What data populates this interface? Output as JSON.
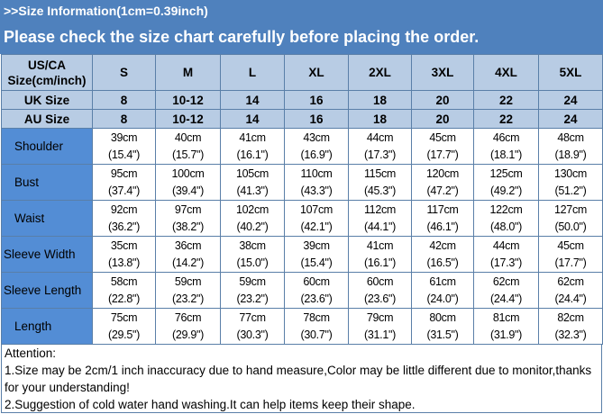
{
  "banner": {
    "title": ">>Size Information(1cm=0.39inch)",
    "subtitle": "Please check the size chart carefully before placing the order."
  },
  "colors": {
    "banner": "#4f81bd",
    "header_cells": "#b8cce4",
    "label_cells": "#538dd5",
    "border": "#5a7fa8"
  },
  "table": {
    "header_label": [
      "US/CA",
      "Size(cm/inch)"
    ],
    "sizes": [
      "S",
      "M",
      "L",
      "XL",
      "2XL",
      "3XL",
      "4XL",
      "5XL"
    ],
    "size_rows": [
      {
        "label": "UK Size",
        "values": [
          "8",
          "10-12",
          "14",
          "16",
          "18",
          "20",
          "22",
          "24"
        ]
      },
      {
        "label": "AU Size",
        "values": [
          "8",
          "10-12",
          "14",
          "16",
          "18",
          "20",
          "22",
          "24"
        ]
      }
    ],
    "measurements": [
      {
        "label": "Shoulder",
        "cm": [
          "39cm",
          "40cm",
          "41cm",
          "43cm",
          "44cm",
          "45cm",
          "46cm",
          "48cm"
        ],
        "inch": [
          "(15.4\")",
          "(15.7\")",
          "(16.1\")",
          "(16.9\")",
          "(17.3\")",
          "(17.7\")",
          "(18.1\")",
          "(18.9\")"
        ]
      },
      {
        "label": "Bust",
        "cm": [
          "95cm",
          "100cm",
          "105cm",
          "110cm",
          "115cm",
          "120cm",
          "125cm",
          "130cm"
        ],
        "inch": [
          "(37.4\")",
          "(39.4\")",
          "(41.3\")",
          "(43.3\")",
          "(45.3\")",
          "(47.2\")",
          "(49.2\")",
          "(51.2\")"
        ]
      },
      {
        "label": "Waist",
        "cm": [
          "92cm",
          "97cm",
          "102cm",
          "107cm",
          "112cm",
          "117cm",
          "122cm",
          "127cm"
        ],
        "inch": [
          "(36.2\")",
          "(38.2\")",
          "(40.2\")",
          "(42.1\")",
          "(44.1\")",
          "(46.1\")",
          "(48.0\")",
          "(50.0\")"
        ]
      },
      {
        "label": "Sleeve Width",
        "cm": [
          "35cm",
          "36cm",
          "38cm",
          "39cm",
          "41cm",
          "42cm",
          "44cm",
          "45cm"
        ],
        "inch": [
          "(13.8\")",
          "(14.2\")",
          "(15.0\")",
          "(15.4\")",
          "(16.1\")",
          "(16.5\")",
          "(17.3\")",
          "(17.7\")"
        ]
      },
      {
        "label": "Sleeve Length",
        "cm": [
          "58cm",
          "59cm",
          "59cm",
          "60cm",
          "60cm",
          "61cm",
          "62cm",
          "62cm"
        ],
        "inch": [
          "(22.8\")",
          "(23.2\")",
          "(23.2\")",
          "(23.6\")",
          "(23.6\")",
          "(24.0\")",
          "(24.4\")",
          "(24.4\")"
        ]
      },
      {
        "label": "Length",
        "cm": [
          "75cm",
          "76cm",
          "77cm",
          "78cm",
          "79cm",
          "80cm",
          "81cm",
          "82cm"
        ],
        "inch": [
          "(29.5\")",
          "(29.9\")",
          "(30.3\")",
          "(30.7\")",
          "(31.1\")",
          "(31.5\")",
          "(31.9\")",
          "(32.3\")"
        ]
      }
    ]
  },
  "attention": {
    "heading": "Attention:",
    "notes": [
      "1.Size may be 2cm/1 inch inaccuracy due to hand measure,Color may be little different due to monitor,thanks for your understanding!",
      "2.Suggestion of cold water hand washing.It can help items keep their shape."
    ]
  }
}
